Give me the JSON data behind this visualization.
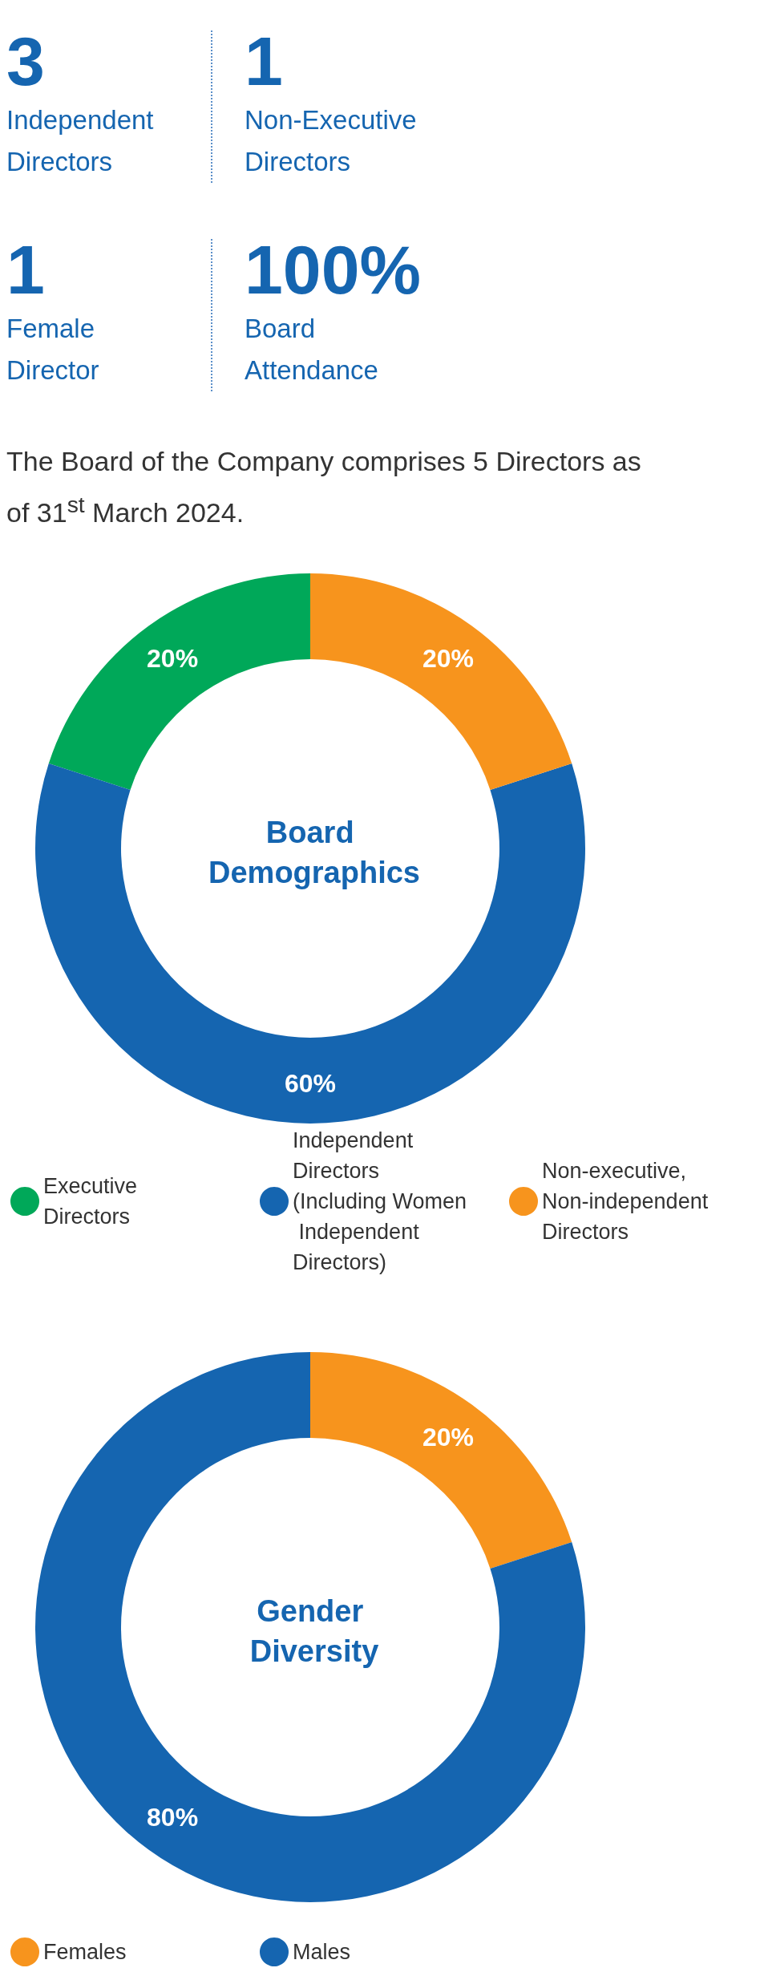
{
  "chart_data": [
    {
      "type": "other",
      "categories": [
        "Independent Directors",
        "Non-Executive Directors",
        "Female Director",
        "Board Attendance"
      ],
      "value_labels": [
        "3",
        "1",
        "1",
        "100%"
      ],
      "annotations": [
        "The Board of the Company comprises 5 Directors as of 31$^{st}$ March 2024."
      ]
    },
    {
      "type": "donut",
      "title": "Board Demographics",
      "categories": [
        "Executive Directors",
        "Independent Directors (Including Women Independent Directors)",
        "Non-executive, Non-independent Directors"
      ],
      "values": [
        20,
        60,
        20
      ],
      "colors": [
        "#00a859",
        "#1565b0",
        "#f7941d"
      ],
      "value_labels": [
        "20%",
        "60%",
        "20%"
      ],
      "legend": "bottom"
    },
    {
      "type": "donut",
      "title": "Gender Diversity",
      "categories": [
        "Females",
        "Males"
      ],
      "values": [
        20,
        80
      ],
      "colors": [
        "#f7941d",
        "#1565b0"
      ],
      "value_labels": [
        "20%",
        "80%"
      ],
      "legend": "bottom"
    }
  ]
}
